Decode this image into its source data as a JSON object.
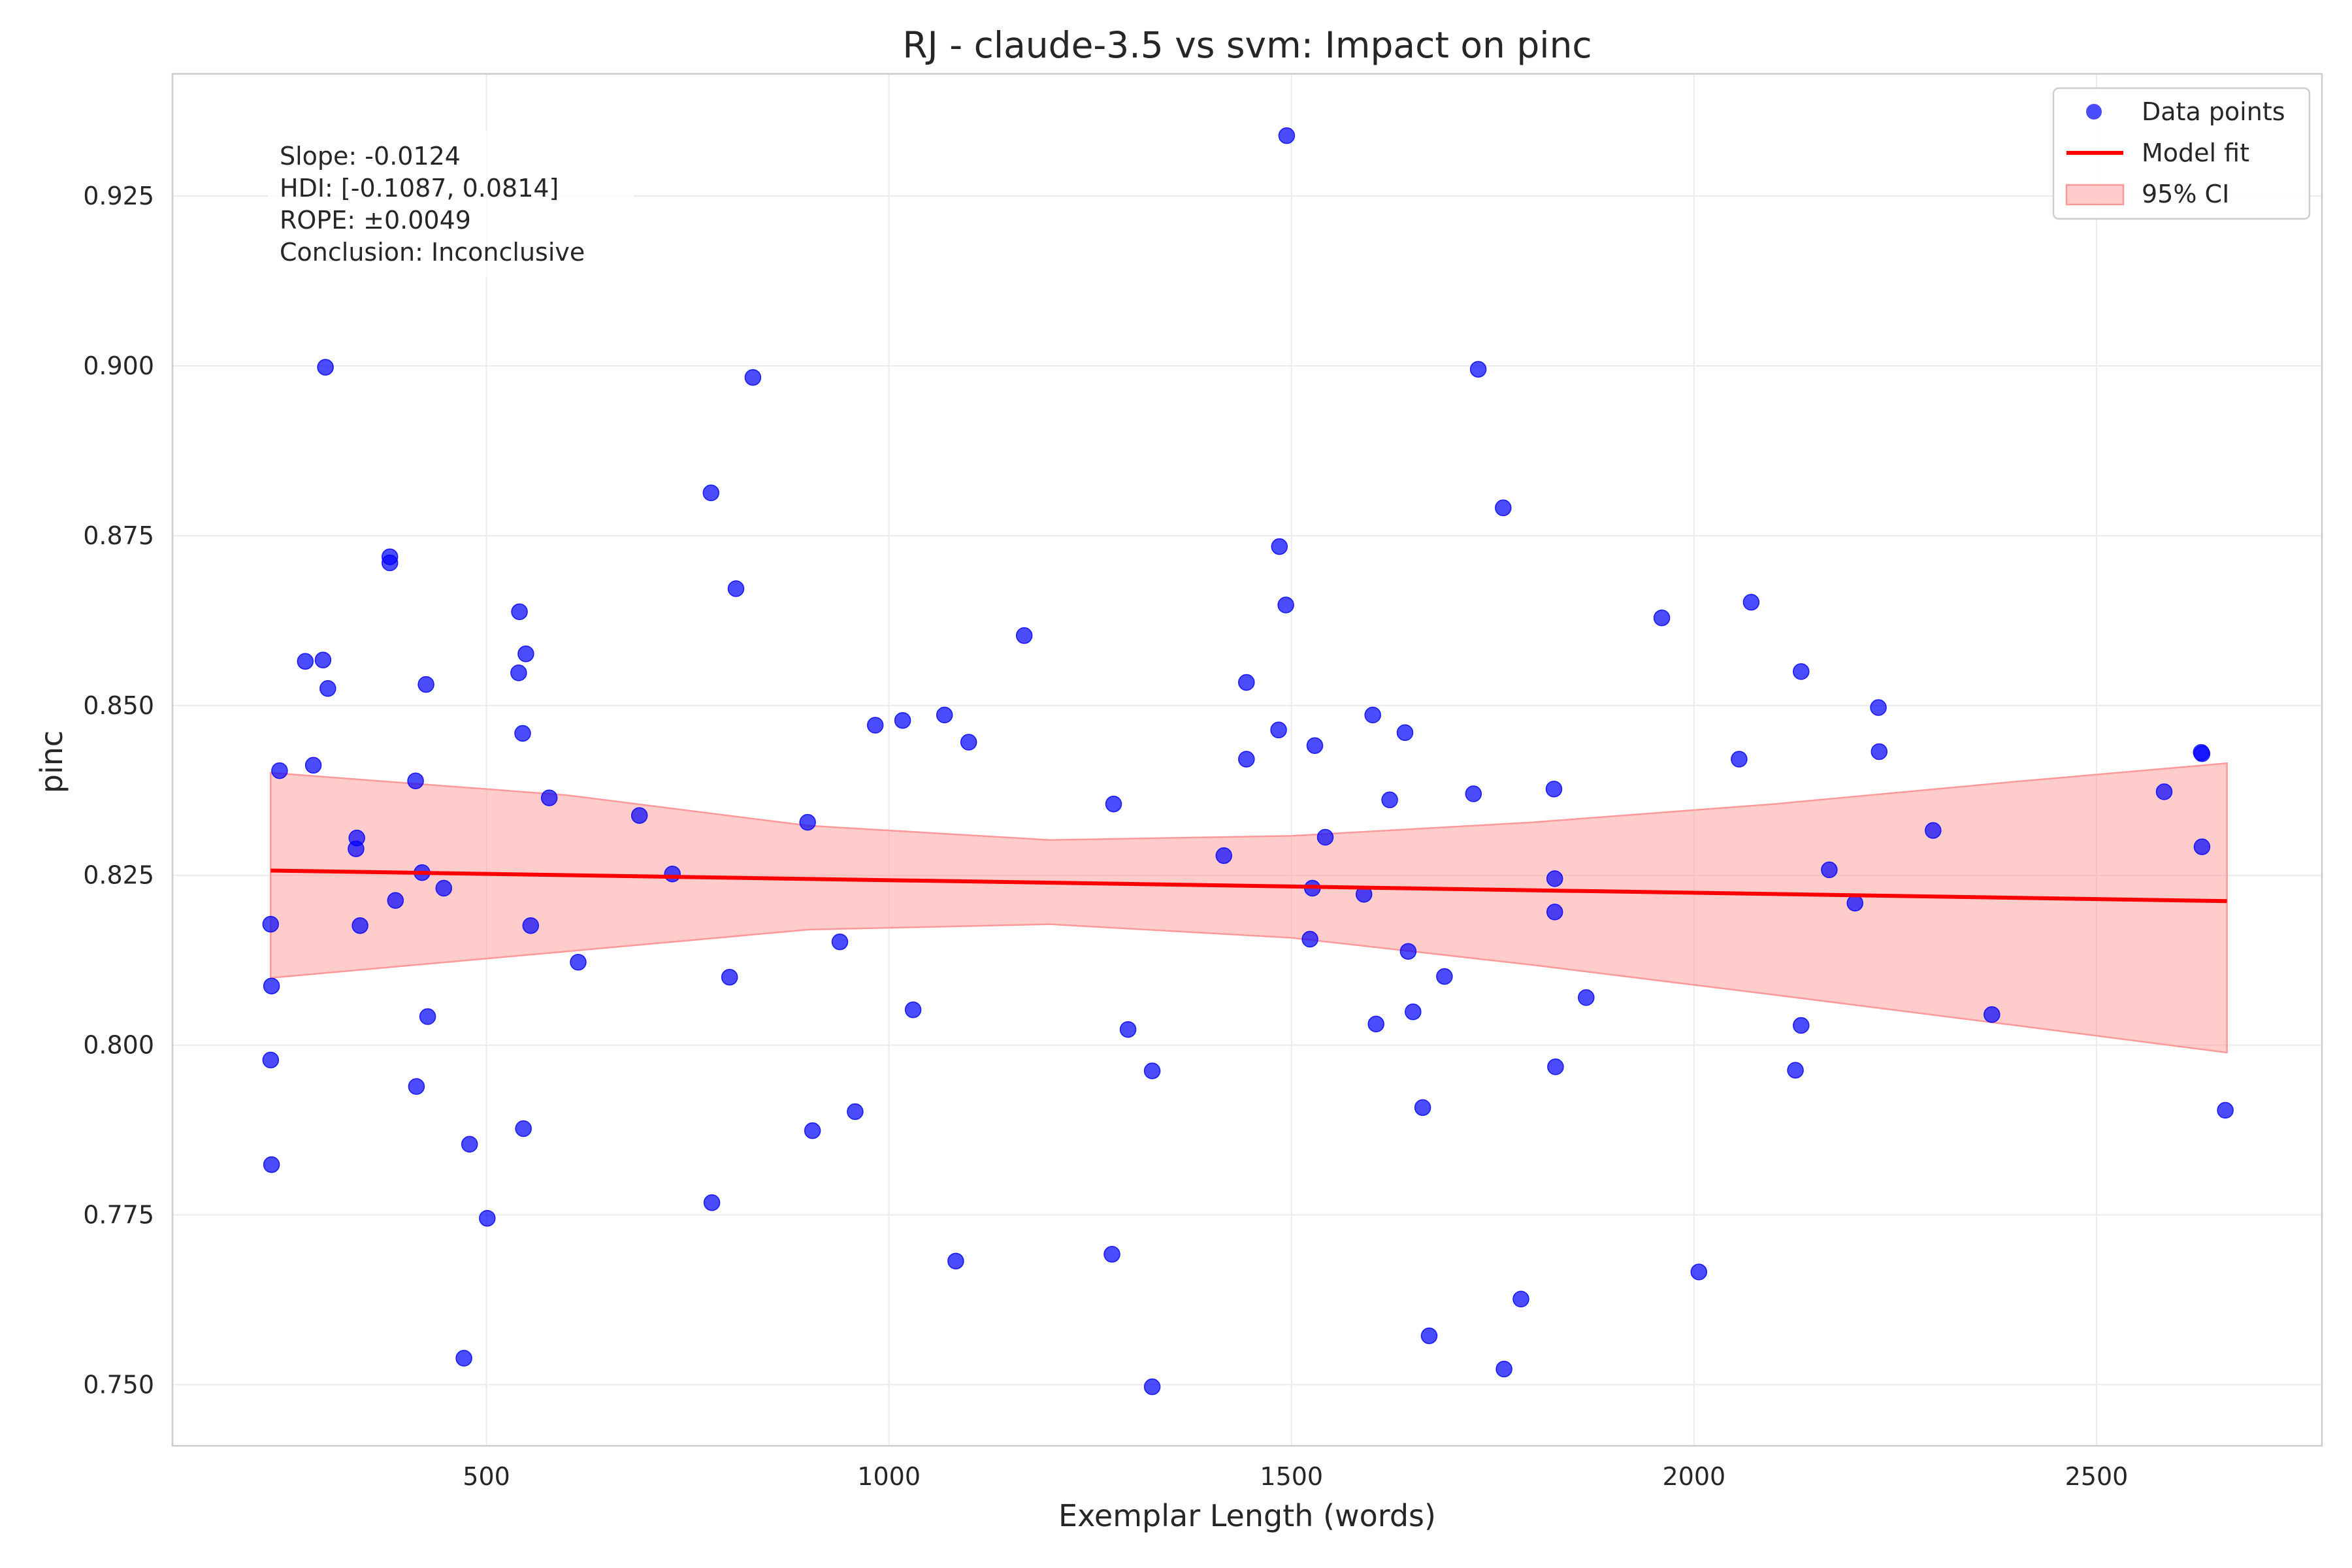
{
  "chart_data": {
    "type": "scatter",
    "title": "RJ - claude-3.5 vs svm: Impact on pinc",
    "xlabel": "Exemplar Length (words)",
    "ylabel": "pinc",
    "xlim": [
      110,
      2780
    ],
    "ylim": [
      0.741,
      0.943
    ],
    "xticks": [
      500,
      1000,
      1500,
      2000,
      2500
    ],
    "yticks": [
      0.75,
      0.775,
      0.8,
      0.825,
      0.85,
      0.875,
      0.9,
      0.925
    ],
    "ytick_labels": [
      "0.750",
      "0.775",
      "0.800",
      "0.825",
      "0.850",
      "0.875",
      "0.900",
      "0.925"
    ],
    "grid": true,
    "legend_position": "top-right",
    "legend": [
      "Data points",
      "Model fit",
      "95% CI"
    ],
    "colors": {
      "points": "#0000ff",
      "fit": "#ff0000",
      "ci": "#ff9999"
    },
    "annotation": [
      "Slope: -0.0124",
      "HDI: [-0.1087, 0.0814]",
      "ROPE: ±0.0049",
      "Conclusion: Inconclusive"
    ],
    "fit": {
      "x": [
        232,
        2662
      ],
      "y": [
        0.8257,
        0.8212
      ]
    },
    "ci": {
      "x": [
        232,
        600,
        900,
        1200,
        1500,
        1800,
        2100,
        2400,
        2662
      ],
      "upper": [
        0.8401,
        0.8368,
        0.8323,
        0.8302,
        0.8308,
        0.8328,
        0.8355,
        0.8388,
        0.8415
      ],
      "lower": [
        0.8099,
        0.8138,
        0.817,
        0.8178,
        0.8158,
        0.8118,
        0.8074,
        0.8029,
        0.7989
      ]
    },
    "points": [
      [
        300,
        0.8998
      ],
      [
        232,
        0.8178
      ],
      [
        233,
        0.8087
      ],
      [
        232,
        0.7978
      ],
      [
        233,
        0.7824
      ],
      [
        243,
        0.8404
      ],
      [
        275,
        0.8565
      ],
      [
        285,
        0.8412
      ],
      [
        297,
        0.8567
      ],
      [
        303,
        0.8525
      ],
      [
        338,
        0.8289
      ],
      [
        339,
        0.8305
      ],
      [
        343,
        0.8176
      ],
      [
        380,
        0.8719
      ],
      [
        380,
        0.871
      ],
      [
        387,
        0.8213
      ],
      [
        412,
        0.8389
      ],
      [
        413,
        0.7939
      ],
      [
        420,
        0.8254
      ],
      [
        425,
        0.8531
      ],
      [
        427,
        0.8042
      ],
      [
        447,
        0.8231
      ],
      [
        472,
        0.7539
      ],
      [
        479,
        0.7854
      ],
      [
        501,
        0.7745
      ],
      [
        540,
        0.8548
      ],
      [
        541,
        0.8638
      ],
      [
        545,
        0.8459
      ],
      [
        546,
        0.7877
      ],
      [
        549,
        0.8576
      ],
      [
        555,
        0.8176
      ],
      [
        578,
        0.8364
      ],
      [
        614,
        0.8122
      ],
      [
        690,
        0.8338
      ],
      [
        731,
        0.8252
      ],
      [
        779,
        0.8813
      ],
      [
        780,
        0.7768
      ],
      [
        802,
        0.81
      ],
      [
        810,
        0.8672
      ],
      [
        831,
        0.8983
      ],
      [
        899,
        0.8328
      ],
      [
        905,
        0.7874
      ],
      [
        939,
        0.8152
      ],
      [
        958,
        0.7902
      ],
      [
        983,
        0.8471
      ],
      [
        1017,
        0.8478
      ],
      [
        1030,
        0.8052
      ],
      [
        1069,
        0.8486
      ],
      [
        1083,
        0.7682
      ],
      [
        1099,
        0.8446
      ],
      [
        1168,
        0.8603
      ],
      [
        1277,
        0.7692
      ],
      [
        1279,
        0.8355
      ],
      [
        1297,
        0.8023
      ],
      [
        1327,
        0.7962
      ],
      [
        1327,
        0.7497
      ],
      [
        1416,
        0.8279
      ],
      [
        1444,
        0.8534
      ],
      [
        1444,
        0.8421
      ],
      [
        1484,
        0.8464
      ],
      [
        1485,
        0.8734
      ],
      [
        1493,
        0.8648
      ],
      [
        1494,
        0.9339
      ],
      [
        1523,
        0.8156
      ],
      [
        1526,
        0.8231
      ],
      [
        1529,
        0.8441
      ],
      [
        1542,
        0.8306
      ],
      [
        1590,
        0.8222
      ],
      [
        1601,
        0.8486
      ],
      [
        1605,
        0.8031
      ],
      [
        1622,
        0.8361
      ],
      [
        1641,
        0.846
      ],
      [
        1645,
        0.8138
      ],
      [
        1651,
        0.8049
      ],
      [
        1663,
        0.7908
      ],
      [
        1671,
        0.7572
      ],
      [
        1690,
        0.8101
      ],
      [
        1726,
        0.837
      ],
      [
        1732,
        0.8995
      ],
      [
        1763,
        0.8791
      ],
      [
        1764,
        0.7523
      ],
      [
        1785,
        0.7626
      ],
      [
        1826,
        0.8377
      ],
      [
        1827,
        0.8245
      ],
      [
        1827,
        0.8196
      ],
      [
        1828,
        0.7968
      ],
      [
        1866,
        0.807
      ],
      [
        1960,
        0.8629
      ],
      [
        2006,
        0.7666
      ],
      [
        2056,
        0.8421
      ],
      [
        2071,
        0.8652
      ],
      [
        2126,
        0.7963
      ],
      [
        2133,
        0.855
      ],
      [
        2133,
        0.8029
      ],
      [
        2168,
        0.8258
      ],
      [
        2200,
        0.8209
      ],
      [
        2229,
        0.8497
      ],
      [
        2230,
        0.8432
      ],
      [
        2297,
        0.8316
      ],
      [
        2370,
        0.8045
      ],
      [
        2584,
        0.8373
      ],
      [
        2630,
        0.8431
      ],
      [
        2631,
        0.8429
      ],
      [
        2631,
        0.8292
      ],
      [
        2660,
        0.7904
      ]
    ]
  }
}
